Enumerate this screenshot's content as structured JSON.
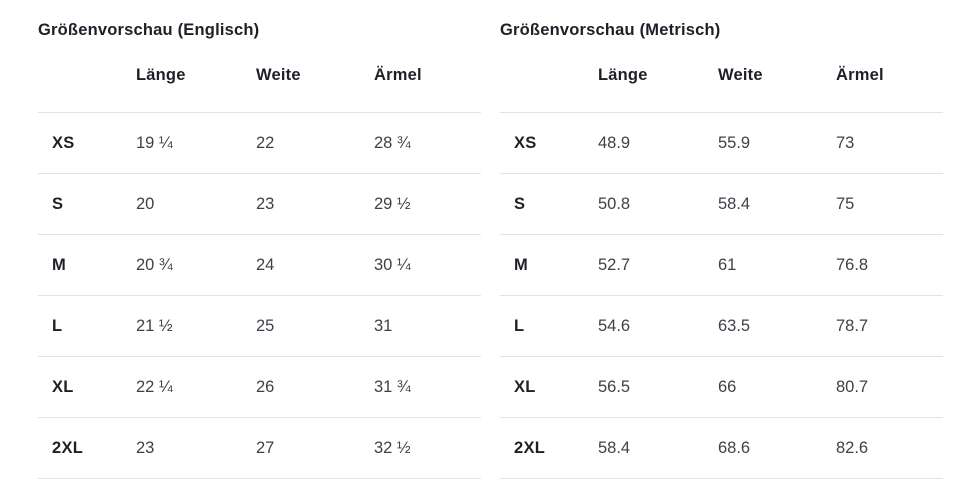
{
  "colors": {
    "background": "#ffffff",
    "heading_text": "#1d2127",
    "value_text": "#3e4247",
    "divider": "#e3e3e3"
  },
  "tables": [
    {
      "title": "Größenvorschau (Englisch)",
      "columns": [
        "",
        "Länge",
        "Weite",
        "Ärmel"
      ],
      "rows": [
        {
          "size": "XS",
          "values": [
            "19 ¼",
            "22",
            "28 ¾"
          ]
        },
        {
          "size": "S",
          "values": [
            "20",
            "23",
            "29 ½"
          ]
        },
        {
          "size": "M",
          "values": [
            "20 ¾",
            "24",
            "30 ¼"
          ]
        },
        {
          "size": "L",
          "values": [
            "21 ½",
            "25",
            "31"
          ]
        },
        {
          "size": "XL",
          "values": [
            "22 ¼",
            "26",
            "31 ¾"
          ]
        },
        {
          "size": "2XL",
          "values": [
            "23",
            "27",
            "32 ½"
          ]
        }
      ]
    },
    {
      "title": "Größenvorschau (Metrisch)",
      "columns": [
        "",
        "Länge",
        "Weite",
        "Ärmel"
      ],
      "rows": [
        {
          "size": "XS",
          "values": [
            "48.9",
            "55.9",
            "73"
          ]
        },
        {
          "size": "S",
          "values": [
            "50.8",
            "58.4",
            "75"
          ]
        },
        {
          "size": "M",
          "values": [
            "52.7",
            "61",
            "76.8"
          ]
        },
        {
          "size": "L",
          "values": [
            "54.6",
            "63.5",
            "78.7"
          ]
        },
        {
          "size": "XL",
          "values": [
            "56.5",
            "66",
            "80.7"
          ]
        },
        {
          "size": "2XL",
          "values": [
            "58.4",
            "68.6",
            "82.6"
          ]
        }
      ]
    }
  ]
}
